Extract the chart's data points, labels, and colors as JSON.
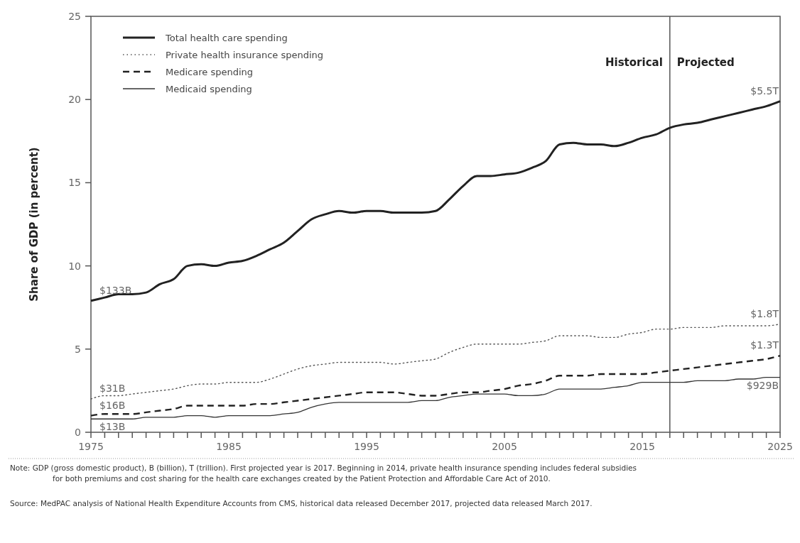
{
  "chart_data": {
    "type": "line",
    "ylabel": "Share of GDP (in percent)",
    "x": [
      1975,
      1976,
      1977,
      1978,
      1979,
      1980,
      1981,
      1982,
      1983,
      1984,
      1985,
      1986,
      1987,
      1988,
      1989,
      1990,
      1991,
      1992,
      1993,
      1994,
      1995,
      1996,
      1997,
      1998,
      1999,
      2000,
      2001,
      2002,
      2003,
      2004,
      2005,
      2006,
      2007,
      2008,
      2009,
      2010,
      2011,
      2012,
      2013,
      2014,
      2015,
      2016,
      2017,
      2018,
      2019,
      2020,
      2021,
      2022,
      2023,
      2024,
      2025
    ],
    "series": [
      {
        "name": "Total health care spending",
        "color": "#222222",
        "line_style": "solid",
        "values": [
          7.9,
          8.1,
          8.3,
          8.3,
          8.4,
          8.9,
          9.2,
          10.0,
          10.1,
          10.0,
          10.2,
          10.3,
          10.6,
          11.0,
          11.4,
          12.1,
          12.8,
          13.1,
          13.3,
          13.2,
          13.3,
          13.3,
          13.2,
          13.2,
          13.2,
          13.3,
          14.0,
          14.8,
          15.4,
          15.4,
          15.5,
          15.6,
          15.9,
          16.3,
          17.3,
          17.4,
          17.3,
          17.3,
          17.2,
          17.4,
          17.7,
          17.9,
          18.3,
          18.5,
          18.6,
          18.8,
          19.0,
          19.2,
          19.4,
          19.6,
          19.9
        ]
      },
      {
        "name": "Private health insurance spending",
        "color": "#555555",
        "line_style": "dotted",
        "values": [
          2.0,
          2.2,
          2.2,
          2.3,
          2.4,
          2.5,
          2.6,
          2.8,
          2.9,
          2.9,
          3.0,
          3.0,
          3.0,
          3.2,
          3.5,
          3.8,
          4.0,
          4.1,
          4.2,
          4.2,
          4.2,
          4.2,
          4.1,
          4.2,
          4.3,
          4.4,
          4.8,
          5.1,
          5.3,
          5.3,
          5.3,
          5.3,
          5.4,
          5.5,
          5.8,
          5.8,
          5.8,
          5.7,
          5.7,
          5.9,
          6.0,
          6.2,
          6.2,
          6.3,
          6.3,
          6.3,
          6.4,
          6.4,
          6.4,
          6.4,
          6.5
        ]
      },
      {
        "name": "Medicare spending",
        "color": "#222222",
        "line_style": "dashed",
        "values": [
          1.0,
          1.1,
          1.1,
          1.1,
          1.2,
          1.3,
          1.4,
          1.6,
          1.6,
          1.6,
          1.6,
          1.6,
          1.7,
          1.7,
          1.8,
          1.9,
          2.0,
          2.1,
          2.2,
          2.3,
          2.4,
          2.4,
          2.4,
          2.3,
          2.2,
          2.2,
          2.3,
          2.4,
          2.4,
          2.5,
          2.6,
          2.8,
          2.9,
          3.1,
          3.4,
          3.4,
          3.4,
          3.5,
          3.5,
          3.5,
          3.5,
          3.6,
          3.7,
          3.8,
          3.9,
          4.0,
          4.1,
          4.2,
          4.3,
          4.4,
          4.6
        ]
      },
      {
        "name": "Medicaid spending",
        "color": "#333333",
        "line_style": "solid",
        "values": [
          0.8,
          0.8,
          0.8,
          0.8,
          0.9,
          0.9,
          0.9,
          1.0,
          1.0,
          0.9,
          1.0,
          1.0,
          1.0,
          1.0,
          1.1,
          1.2,
          1.5,
          1.7,
          1.8,
          1.8,
          1.8,
          1.8,
          1.8,
          1.8,
          1.9,
          1.9,
          2.1,
          2.2,
          2.3,
          2.3,
          2.3,
          2.2,
          2.2,
          2.3,
          2.6,
          2.6,
          2.6,
          2.6,
          2.7,
          2.8,
          3.0,
          3.0,
          3.0,
          3.0,
          3.1,
          3.1,
          3.1,
          3.2,
          3.2,
          3.3,
          3.3
        ]
      }
    ],
    "xlim": [
      1975,
      2025
    ],
    "ylim": [
      0,
      25
    ],
    "xticks": [
      1975,
      {
        "value": 1976,
        "label": null
      },
      {
        "value": 1977,
        "label": null
      },
      {
        "value": 1978,
        "label": null
      },
      {
        "value": 1979,
        "label": null
      },
      {
        "value": 1980,
        "label": null
      },
      {
        "value": 1981,
        "label": null
      },
      {
        "value": 1982,
        "label": null
      },
      {
        "value": 1983,
        "label": null
      },
      {
        "value": 1984,
        "label": null
      },
      1985,
      {
        "value": 1986,
        "label": null
      },
      {
        "value": 1987,
        "label": null
      },
      {
        "value": 1988,
        "label": null
      },
      {
        "value": 1989,
        "label": null
      },
      {
        "value": 1990,
        "label": null
      },
      {
        "value": 1991,
        "label": null
      },
      {
        "value": 1992,
        "label": null
      },
      {
        "value": 1993,
        "label": null
      },
      {
        "value": 1994,
        "label": null
      },
      1995,
      {
        "value": 1996,
        "label": null
      },
      {
        "value": 1997,
        "label": null
      },
      {
        "value": 1998,
        "label": null
      },
      {
        "value": 1999,
        "label": null
      },
      {
        "value": 2000,
        "label": null
      },
      {
        "value": 2001,
        "label": null
      },
      {
        "value": 2002,
        "label": null
      },
      {
        "value": 2003,
        "label": null
      },
      {
        "value": 2004,
        "label": null
      },
      2005,
      {
        "value": 2006,
        "label": null
      },
      {
        "value": 2007,
        "label": null
      },
      {
        "value": 2008,
        "label": null
      },
      {
        "value": 2009,
        "label": null
      },
      {
        "value": 2010,
        "label": null
      },
      {
        "value": 2011,
        "label": null
      },
      {
        "value": 2012,
        "label": null
      },
      {
        "value": 2013,
        "label": null
      },
      {
        "value": 2014,
        "label": null
      },
      2015,
      {
        "value": 2016,
        "label": null
      },
      {
        "value": 2017,
        "label": null
      },
      {
        "value": 2018,
        "label": null
      },
      {
        "value": 2019,
        "label": null
      },
      {
        "value": 2020,
        "label": null
      },
      {
        "value": 2021,
        "label": null
      },
      {
        "value": 2022,
        "label": null
      },
      {
        "value": 2023,
        "label": null
      },
      {
        "value": 2024,
        "label": null
      },
      2025
    ],
    "yticks": [
      0,
      5,
      10,
      15,
      20,
      25
    ],
    "grid": false,
    "legend": "top left",
    "marker": "none",
    "ref_lines": [
      {
        "axis": "x",
        "value": 2017,
        "color": "#555555"
      }
    ],
    "annotations": [
      {
        "text": "Historical",
        "x": 2017,
        "y": 22
      },
      {
        "text": "Projected",
        "x": 2017,
        "y": 22
      },
      {
        "text": "$133B",
        "x": 1975,
        "y": 7.9
      },
      {
        "text": "$31B",
        "x": 1975,
        "y": 2.0
      },
      {
        "text": "$16B",
        "x": 1975,
        "y": 1.0
      },
      {
        "text": "$13B",
        "x": 1975,
        "y": 0.8
      },
      {
        "text": "$5.5T",
        "x": 2025,
        "y": 19.9
      },
      {
        "text": "$1.8T",
        "x": 2025,
        "y": 6.5
      },
      {
        "text": "$1.3T",
        "x": 2025,
        "y": 4.6
      },
      {
        "text": "$929B",
        "x": 2025,
        "y": 3.3
      },
      "Note:   GDP (gross domestic product), B (billion), T (trillion). First projected year is 2017. Beginning in 2014, private health insurance spending includes federal subsidies for both premiums and cost sharing for the health care exchanges created by the Patient Protection and Affordable Care Act of 2010.",
      "Source:  MedPAC analysis of National Health Expenditure Accounts from CMS, historical data released December 2017, projected data released March 2017."
    ]
  }
}
